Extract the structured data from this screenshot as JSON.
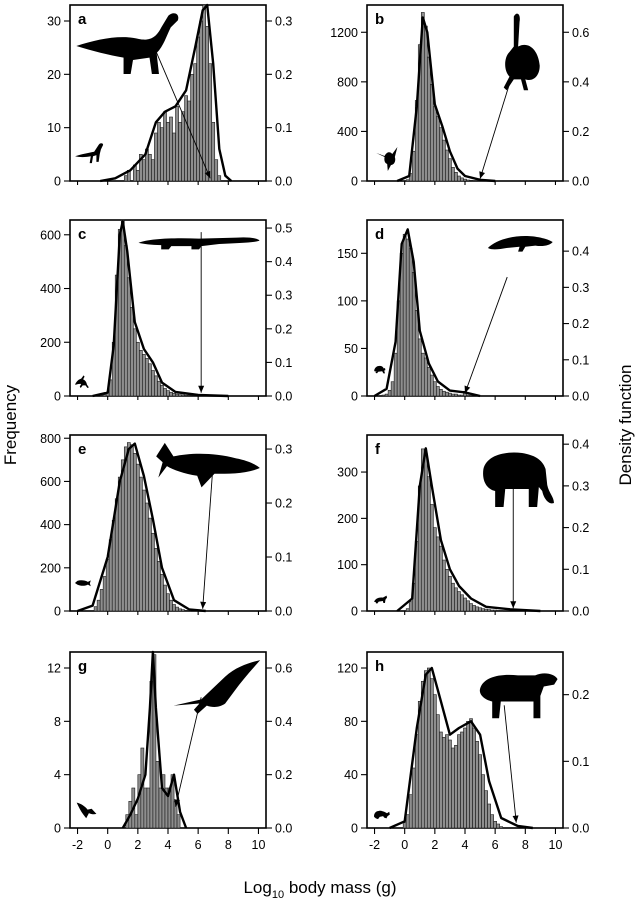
{
  "figure": {
    "ylabel_left": "Frequency",
    "ylabel_right": "Density function",
    "xlabel_prefix": "Log",
    "xlabel_sub": "10",
    "xlabel_suffix": " body mass (g)"
  },
  "chart_data": [
    {
      "panel": "a",
      "type": "bar",
      "xlim": [
        -2.5,
        10.5
      ],
      "ylim": [
        0,
        33
      ],
      "yticks": [
        0,
        10,
        20,
        30
      ],
      "density_lim": [
        0,
        0.33
      ],
      "density_ticks": [
        "0.0",
        "0.1",
        "0.2",
        "0.3"
      ],
      "x": [
        1.0,
        1.2,
        1.4,
        1.6,
        1.8,
        2.0,
        2.2,
        2.4,
        2.6,
        2.8,
        3.0,
        3.2,
        3.4,
        3.6,
        3.8,
        4.0,
        4.2,
        4.4,
        4.6,
        4.8,
        5.0,
        5.2,
        5.4,
        5.6,
        5.8,
        6.0,
        6.2,
        6.4,
        6.6,
        6.8,
        7.0,
        7.2,
        7.4
      ],
      "values": [
        0,
        1,
        2,
        0,
        3,
        2,
        5,
        4,
        6,
        5,
        4,
        9,
        11,
        10,
        13,
        11,
        12,
        9,
        14,
        11,
        13,
        16,
        15,
        20,
        22,
        27,
        30,
        33,
        29,
        22,
        11,
        4,
        1
      ],
      "density": [
        [
          -0.5,
          0
        ],
        [
          0.5,
          0.005
        ],
        [
          1.5,
          0.02
        ],
        [
          2.5,
          0.05
        ],
        [
          3.2,
          0.11
        ],
        [
          3.8,
          0.13
        ],
        [
          4.5,
          0.14
        ],
        [
          5.2,
          0.17
        ],
        [
          5.8,
          0.25
        ],
        [
          6.3,
          0.32
        ],
        [
          6.6,
          0.33
        ],
        [
          7.0,
          0.22
        ],
        [
          7.4,
          0.06
        ],
        [
          7.8,
          0.01
        ],
        [
          8.2,
          0
        ]
      ],
      "arrow": {
        "from": [
          3.1,
          25.0
        ],
        "to": [
          6.8,
          0.5
        ]
      },
      "icons": [
        "sauropod-icon",
        "small-theropod-icon"
      ]
    },
    {
      "panel": "b",
      "type": "bar",
      "xlim": [
        -2.5,
        10.5
      ],
      "ylim": [
        0,
        1420
      ],
      "yticks": [
        0,
        400,
        800,
        1200
      ],
      "density_lim": [
        0,
        0.71
      ],
      "density_ticks": [
        "0.0",
        "0.2",
        "0.4",
        "0.6"
      ],
      "x": [
        0.2,
        0.4,
        0.6,
        0.8,
        1.0,
        1.2,
        1.4,
        1.6,
        1.8,
        2.0,
        2.2,
        2.4,
        2.6,
        2.8,
        3.0,
        3.2,
        3.4,
        3.6,
        3.8,
        4.0,
        4.2,
        4.4,
        4.6,
        4.8,
        5.0,
        5.2
      ],
      "values": [
        10,
        60,
        240,
        650,
        1100,
        1360,
        1250,
        1000,
        780,
        600,
        520,
        430,
        330,
        250,
        180,
        110,
        70,
        40,
        25,
        15,
        8,
        5,
        3,
        2,
        1,
        1
      ],
      "density": [
        [
          -0.5,
          0
        ],
        [
          0.3,
          0.02
        ],
        [
          0.8,
          0.3
        ],
        [
          1.2,
          0.66
        ],
        [
          1.5,
          0.6
        ],
        [
          2.0,
          0.31
        ],
        [
          2.5,
          0.22
        ],
        [
          3.0,
          0.12
        ],
        [
          3.5,
          0.05
        ],
        [
          4.0,
          0.02
        ],
        [
          5.0,
          0.005
        ],
        [
          6.0,
          0
        ]
      ],
      "arrow": {
        "from": [
          7.5,
          1000
        ],
        "to": [
          5.0,
          18
        ]
      },
      "icons": [
        "ostrich-icon",
        "hummingbird-icon"
      ]
    },
    {
      "panel": "c",
      "type": "bar",
      "xlim": [
        -2.5,
        10.5
      ],
      "ylim": [
        0,
        655
      ],
      "yticks": [
        0,
        200,
        400,
        600
      ],
      "density_lim": [
        0,
        0.524
      ],
      "density_ticks": [
        "0.0",
        "0.1",
        "0.2",
        "0.3",
        "0.4",
        "0.5"
      ],
      "x": [
        -0.4,
        -0.2,
        0.0,
        0.2,
        0.4,
        0.6,
        0.8,
        1.0,
        1.2,
        1.4,
        1.6,
        1.8,
        2.0,
        2.2,
        2.4,
        2.6,
        2.8,
        3.0,
        3.2,
        3.4,
        3.6,
        3.8,
        4.0,
        4.2,
        4.4,
        4.6,
        4.8,
        5.0,
        5.2,
        5.4,
        5.6,
        5.8
      ],
      "values": [
        2,
        5,
        15,
        60,
        200,
        450,
        620,
        655,
        560,
        440,
        330,
        250,
        200,
        170,
        155,
        140,
        120,
        95,
        75,
        55,
        40,
        28,
        20,
        14,
        10,
        7,
        5,
        4,
        3,
        2,
        2,
        1
      ],
      "density": [
        [
          -1,
          0
        ],
        [
          0,
          0.01
        ],
        [
          0.4,
          0.15
        ],
        [
          0.8,
          0.48
        ],
        [
          1.0,
          0.52
        ],
        [
          1.3,
          0.43
        ],
        [
          1.8,
          0.22
        ],
        [
          2.4,
          0.14
        ],
        [
          3.0,
          0.1
        ],
        [
          3.6,
          0.04
        ],
        [
          4.5,
          0.012
        ],
        [
          6.0,
          0.003
        ],
        [
          8.0,
          0
        ]
      ],
      "arrow": {
        "from": [
          6.2,
          610
        ],
        "to": [
          6.2,
          12
        ]
      },
      "icons": [
        "crocodile-icon",
        "gecko-icon"
      ]
    },
    {
      "panel": "d",
      "type": "bar",
      "xlim": [
        -2.5,
        10.5
      ],
      "ylim": [
        0,
        185
      ],
      "yticks": [
        0,
        50,
        100,
        150
      ],
      "density_lim": [
        0,
        0.486
      ],
      "density_ticks": [
        "0.0",
        "0.1",
        "0.2",
        "0.3",
        "0.4"
      ],
      "x": [
        -1.4,
        -1.2,
        -1.0,
        -0.8,
        -0.6,
        -0.4,
        -0.2,
        0.0,
        0.2,
        0.4,
        0.6,
        0.8,
        1.0,
        1.2,
        1.4,
        1.6,
        1.8,
        2.0,
        2.2,
        2.4,
        2.6,
        2.8,
        3.0,
        3.2,
        3.4,
        3.6,
        3.8,
        4.0,
        4.2
      ],
      "values": [
        1,
        2,
        6,
        15,
        45,
        100,
        150,
        170,
        165,
        155,
        130,
        90,
        60,
        45,
        40,
        30,
        22,
        15,
        10,
        7,
        5,
        4,
        3,
        2,
        2,
        1,
        1,
        5,
        1
      ],
      "density": [
        [
          -2,
          0
        ],
        [
          -1.2,
          0.02
        ],
        [
          -0.6,
          0.15
        ],
        [
          -0.2,
          0.42
        ],
        [
          0.2,
          0.46
        ],
        [
          0.6,
          0.37
        ],
        [
          1.0,
          0.18
        ],
        [
          1.6,
          0.09
        ],
        [
          2.2,
          0.04
        ],
        [
          3.0,
          0.015
        ],
        [
          4.0,
          0.01
        ],
        [
          5.0,
          0
        ]
      ],
      "arrow": {
        "from": [
          6.8,
          125
        ],
        "to": [
          4.0,
          3
        ]
      },
      "icons": [
        "giant-salamander-icon",
        "frog-icon"
      ]
    },
    {
      "panel": "e",
      "type": "bar",
      "xlim": [
        -2.5,
        10.5
      ],
      "ylim": [
        0,
        815
      ],
      "yticks": [
        0,
        200,
        400,
        600,
        800
      ],
      "density_lim": [
        0,
        0.326
      ],
      "density_ticks": [
        "0.0",
        "0.1",
        "0.2",
        "0.3"
      ],
      "x": [
        -0.8,
        -0.6,
        -0.4,
        -0.2,
        0.0,
        0.2,
        0.4,
        0.6,
        0.8,
        1.0,
        1.2,
        1.4,
        1.6,
        1.8,
        2.0,
        2.2,
        2.4,
        2.6,
        2.8,
        3.0,
        3.2,
        3.4,
        3.6,
        3.8,
        4.0,
        4.2,
        4.4,
        4.6,
        4.8,
        5.0,
        5.2,
        5.4
      ],
      "values": [
        20,
        50,
        100,
        160,
        240,
        330,
        420,
        520,
        620,
        700,
        760,
        780,
        770,
        730,
        680,
        620,
        560,
        500,
        430,
        360,
        290,
        230,
        170,
        120,
        80,
        50,
        30,
        18,
        10,
        6,
        3,
        1
      ],
      "density": [
        [
          -2,
          0
        ],
        [
          -1,
          0.01
        ],
        [
          0,
          0.1
        ],
        [
          0.8,
          0.24
        ],
        [
          1.4,
          0.3
        ],
        [
          1.8,
          0.31
        ],
        [
          2.4,
          0.25
        ],
        [
          3.0,
          0.17
        ],
        [
          3.6,
          0.08
        ],
        [
          4.4,
          0.02
        ],
        [
          5.4,
          0.003
        ],
        [
          6.5,
          0
        ]
      ],
      "arrow": {
        "from": [
          7.0,
          690
        ],
        "to": [
          6.3,
          10
        ]
      },
      "icons": [
        "whale-shark-icon",
        "small-fish-icon"
      ]
    },
    {
      "panel": "f",
      "type": "bar",
      "xlim": [
        -2.5,
        10.5
      ],
      "ylim": [
        0,
        380
      ],
      "yticks": [
        0,
        100,
        200,
        300
      ],
      "density_lim": [
        0,
        0.422
      ],
      "density_ticks": [
        "0.0",
        "0.1",
        "0.2",
        "0.3",
        "0.4"
      ],
      "x": [
        0.2,
        0.4,
        0.6,
        0.8,
        1.0,
        1.2,
        1.4,
        1.6,
        1.8,
        2.0,
        2.2,
        2.4,
        2.6,
        2.8,
        3.0,
        3.2,
        3.4,
        3.6,
        3.8,
        4.0,
        4.2,
        4.4,
        4.6,
        4.8,
        5.0,
        5.2,
        5.4,
        5.6,
        5.8,
        6.0,
        6.2,
        6.4
      ],
      "values": [
        5,
        20,
        60,
        150,
        270,
        350,
        340,
        290,
        230,
        180,
        160,
        140,
        110,
        90,
        75,
        60,
        50,
        42,
        35,
        28,
        22,
        16,
        12,
        9,
        7,
        5,
        4,
        3,
        2,
        2,
        1,
        1
      ],
      "density": [
        [
          -0.5,
          0
        ],
        [
          0.5,
          0.03
        ],
        [
          1.0,
          0.3
        ],
        [
          1.4,
          0.39
        ],
        [
          1.8,
          0.3
        ],
        [
          2.4,
          0.17
        ],
        [
          3.0,
          0.1
        ],
        [
          3.6,
          0.06
        ],
        [
          4.4,
          0.03
        ],
        [
          5.4,
          0.01
        ],
        [
          7.0,
          0.004
        ],
        [
          9.0,
          0
        ]
      ],
      "arrow": {
        "from": [
          7.2,
          290
        ],
        "to": [
          7.2,
          6
        ]
      },
      "icons": [
        "elephant-icon",
        "shrew-icon"
      ]
    },
    {
      "panel": "g",
      "type": "bar",
      "xlim": [
        -2.5,
        10.5
      ],
      "ylim": [
        0,
        13.2
      ],
      "yticks": [
        0,
        4,
        8,
        12
      ],
      "density_lim": [
        0,
        0.66
      ],
      "density_ticks": [
        "0.0",
        "0.2",
        "0.4",
        "0.6"
      ],
      "x": [
        1.3,
        1.5,
        1.7,
        1.9,
        2.1,
        2.3,
        2.5,
        2.7,
        2.9,
        3.1,
        3.3,
        3.5,
        3.7,
        3.9,
        4.1,
        4.3,
        4.5,
        4.7
      ],
      "values": [
        1,
        2,
        3,
        1,
        4,
        6,
        3,
        3,
        11,
        13,
        5,
        3,
        4,
        3,
        3,
        4,
        2,
        1
      ],
      "density": [
        [
          1.0,
          0
        ],
        [
          1.5,
          0.05
        ],
        [
          2.0,
          0.11
        ],
        [
          2.5,
          0.2
        ],
        [
          2.8,
          0.45
        ],
        [
          3.0,
          0.66
        ],
        [
          3.2,
          0.45
        ],
        [
          3.6,
          0.15
        ],
        [
          4.0,
          0.12
        ],
        [
          4.4,
          0.2
        ],
        [
          4.8,
          0.06
        ],
        [
          5.2,
          0
        ]
      ],
      "arrow": {
        "from": [
          6.2,
          9.8
        ],
        "to": [
          4.5,
          1.6
        ]
      },
      "icons": [
        "pterosaur-icon",
        "small-pterosaur-icon"
      ]
    },
    {
      "panel": "h",
      "type": "bar",
      "xlim": [
        -2.5,
        10.5
      ],
      "ylim": [
        0,
        132
      ],
      "yticks": [
        0,
        40,
        80,
        120
      ],
      "density_lim": [
        0,
        0.264
      ],
      "density_ticks": [
        "0.0",
        "0.1",
        "0.2"
      ],
      "x": [
        0.0,
        0.2,
        0.4,
        0.6,
        0.8,
        1.0,
        1.2,
        1.4,
        1.6,
        1.8,
        2.0,
        2.2,
        2.4,
        2.6,
        2.8,
        3.0,
        3.2,
        3.4,
        3.6,
        3.8,
        4.0,
        4.2,
        4.4,
        4.6,
        4.8,
        5.0,
        5.2,
        5.4,
        5.6,
        5.8,
        6.0,
        6.2,
        6.4
      ],
      "values": [
        4,
        10,
        25,
        45,
        70,
        95,
        110,
        118,
        120,
        112,
        100,
        85,
        72,
        68,
        70,
        66,
        60,
        62,
        70,
        72,
        75,
        80,
        82,
        75,
        65,
        55,
        40,
        28,
        18,
        10,
        5,
        3,
        1
      ],
      "density": [
        [
          -1,
          0
        ],
        [
          0,
          0.01
        ],
        [
          0.8,
          0.15
        ],
        [
          1.4,
          0.23
        ],
        [
          1.8,
          0.24
        ],
        [
          2.4,
          0.19
        ],
        [
          3.0,
          0.14
        ],
        [
          3.6,
          0.15
        ],
        [
          4.4,
          0.16
        ],
        [
          5.0,
          0.14
        ],
        [
          5.6,
          0.07
        ],
        [
          6.4,
          0.015
        ],
        [
          7.5,
          0.003
        ],
        [
          8.5,
          0
        ]
      ],
      "arrow": {
        "from": [
          6.6,
          92
        ],
        "to": [
          7.4,
          4
        ]
      },
      "icons": [
        "indricotherium-icon",
        "mouse-icon"
      ]
    }
  ],
  "x_axis": {
    "ticks": [
      -2,
      0,
      2,
      4,
      6,
      8,
      10
    ]
  }
}
